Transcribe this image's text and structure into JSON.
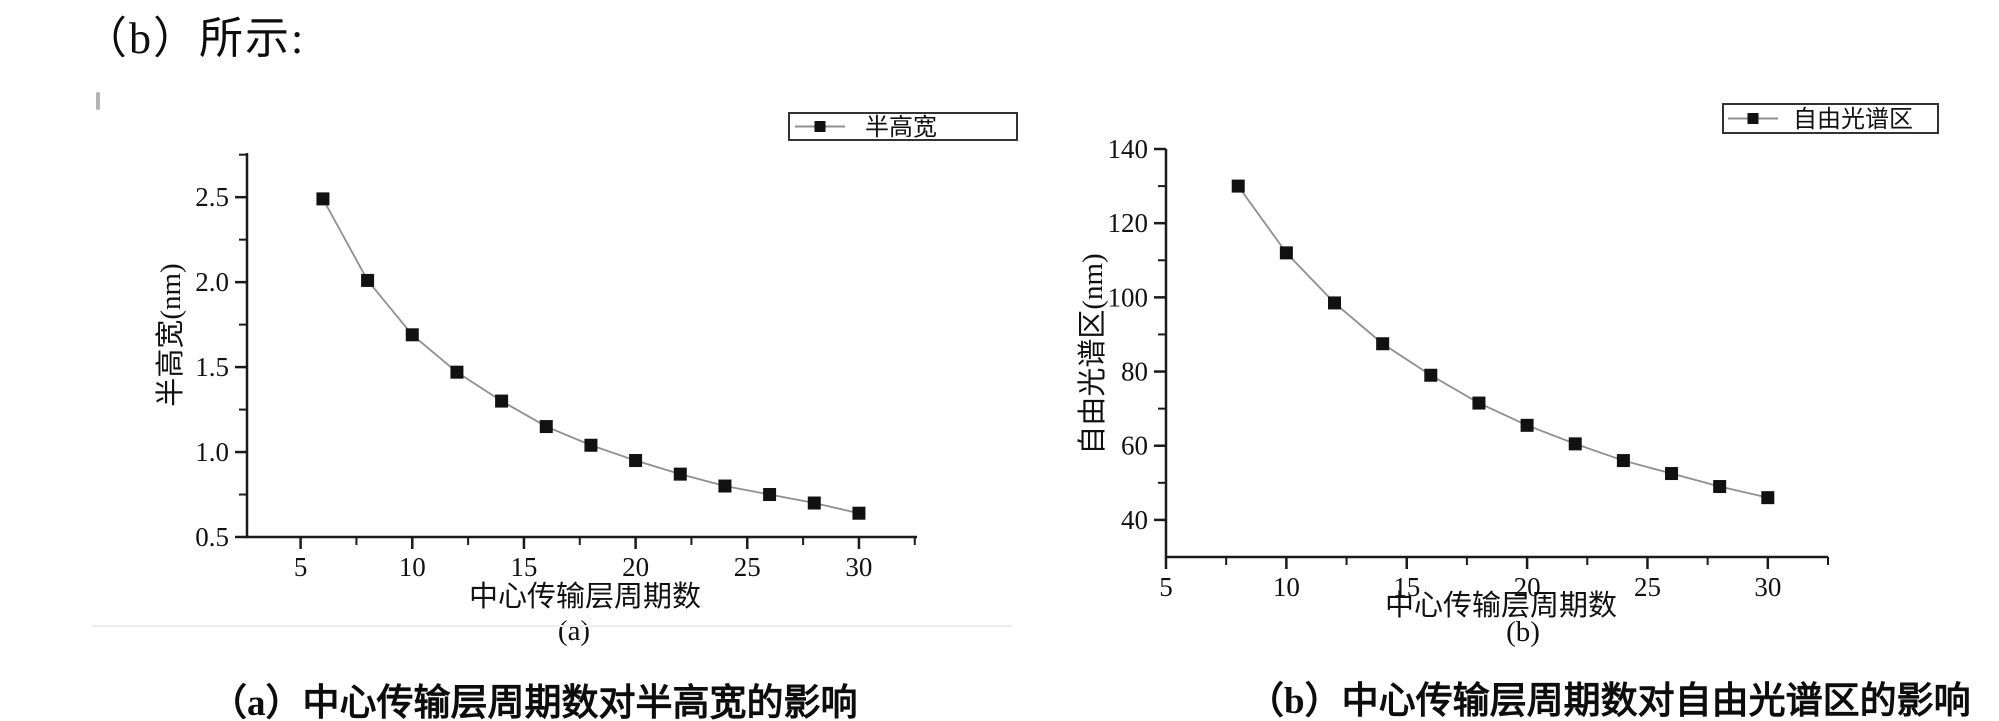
{
  "page": {
    "intro_text": "（b）所示:"
  },
  "captions": {
    "a": "（a）中心传输层周期数对半高宽的影响",
    "b": "（b）中心传输层周期数对自由光谱区的影响"
  },
  "colors": {
    "axis": "#1a1a1a",
    "line": "#8f8f8f",
    "marker": "#111111",
    "text": "#111111",
    "legend_border": "#333333",
    "faint_rule": "#ececec",
    "stray_mark": "#b3b3b3"
  },
  "chart_data": [
    {
      "id": "a",
      "type": "line",
      "title": "",
      "marker": "square",
      "grid": false,
      "legend": {
        "label": "半高宽",
        "position": "top-right-outside"
      },
      "xlabel": "中心传输层周期数",
      "ylabel": "半高宽(nm)",
      "sublabel": "(a)",
      "xlim": [
        2.6,
        32.6
      ],
      "ylim": [
        0.5,
        2.76
      ],
      "x_ticks": {
        "major": [
          5,
          10,
          15,
          20,
          25,
          30
        ],
        "labels": [
          "5",
          "10",
          "15",
          "20",
          "25",
          "30"
        ],
        "minor": [
          7.5,
          12.5,
          17.5,
          22.5,
          27.5,
          32.5
        ]
      },
      "y_ticks": {
        "major": [
          0.5,
          1.0,
          1.5,
          2.0,
          2.5
        ],
        "labels": [
          "0.5",
          "1.0",
          "1.5",
          "2.0",
          "2.5"
        ],
        "minor": [
          0.75,
          1.25,
          1.75,
          2.25,
          2.75
        ]
      },
      "x": [
        6,
        8,
        10,
        12,
        14,
        16,
        18,
        20,
        22,
        24,
        26,
        28,
        30
      ],
      "series": [
        {
          "name": "半高宽",
          "values": [
            2.49,
            2.01,
            1.69,
            1.47,
            1.3,
            1.15,
            1.04,
            0.95,
            0.87,
            0.8,
            0.75,
            0.7,
            0.64
          ]
        }
      ]
    },
    {
      "id": "b",
      "type": "line",
      "title": "",
      "marker": "square",
      "grid": false,
      "legend": {
        "label": "自由光谱区",
        "position": "top-right-outside"
      },
      "xlabel": "中心传输层周期数",
      "ylabel": "自由光谱区(nm)",
      "sublabel": "(b)",
      "xlim": [
        5,
        32.5
      ],
      "ylim": [
        30,
        140
      ],
      "x_ticks": {
        "major": [
          5,
          10,
          15,
          20,
          25,
          30
        ],
        "labels": [
          "5",
          "10",
          "15",
          "20",
          "25",
          "30"
        ],
        "minor": [
          7.5,
          12.5,
          17.5,
          22.5,
          27.5,
          32.5
        ]
      },
      "y_ticks": {
        "major": [
          40,
          60,
          80,
          100,
          120,
          140
        ],
        "labels": [
          "40",
          "60",
          "80",
          "100",
          "120",
          "140"
        ],
        "minor": [
          50,
          70,
          90,
          110,
          130
        ]
      },
      "x": [
        8,
        10,
        12,
        14,
        16,
        18,
        20,
        22,
        24,
        26,
        28,
        30
      ],
      "series": [
        {
          "name": "自由光谱区",
          "values": [
            130,
            112,
            98.5,
            87.5,
            79,
            71.5,
            65.5,
            60.5,
            56,
            52.5,
            49,
            46
          ]
        }
      ]
    }
  ]
}
